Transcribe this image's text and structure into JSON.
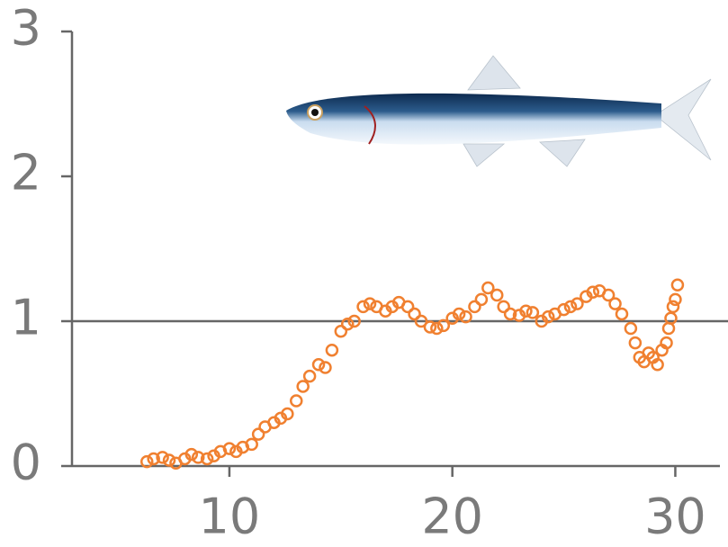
{
  "chart_data": {
    "type": "scatter",
    "x": [
      6.3,
      6.6,
      7.0,
      7.3,
      7.6,
      8.0,
      8.3,
      8.6,
      9.0,
      9.3,
      9.6,
      10.0,
      10.3,
      10.6,
      11.0,
      11.3,
      11.6,
      12.0,
      12.3,
      12.6,
      13.0,
      13.3,
      13.6,
      14.0,
      14.3,
      14.6,
      15.0,
      15.3,
      15.6,
      16.0,
      16.3,
      16.6,
      17.0,
      17.3,
      17.6,
      18.0,
      18.3,
      18.6,
      19.0,
      19.3,
      19.6,
      20.0,
      20.3,
      20.6,
      21.0,
      21.3,
      21.6,
      22.0,
      22.3,
      22.6,
      23.0,
      23.3,
      23.6,
      24.0,
      24.3,
      24.6,
      25.0,
      25.3,
      25.6,
      26.0,
      26.3,
      26.6,
      27.0,
      27.3,
      27.6,
      28.0,
      28.2,
      28.4,
      28.6,
      28.8,
      29.0,
      29.2,
      29.4,
      29.6,
      29.7,
      29.8,
      29.9,
      30.0,
      30.1
    ],
    "values": [
      0.03,
      0.05,
      0.06,
      0.04,
      0.02,
      0.05,
      0.08,
      0.06,
      0.05,
      0.07,
      0.1,
      0.12,
      0.1,
      0.13,
      0.15,
      0.22,
      0.27,
      0.3,
      0.33,
      0.36,
      0.45,
      0.55,
      0.62,
      0.7,
      0.68,
      0.8,
      0.93,
      0.98,
      1.0,
      1.1,
      1.12,
      1.1,
      1.07,
      1.1,
      1.13,
      1.1,
      1.05,
      1.0,
      0.96,
      0.95,
      0.97,
      1.02,
      1.05,
      1.03,
      1.1,
      1.15,
      1.23,
      1.18,
      1.1,
      1.05,
      1.04,
      1.07,
      1.06,
      1.0,
      1.03,
      1.05,
      1.08,
      1.1,
      1.12,
      1.17,
      1.2,
      1.21,
      1.18,
      1.12,
      1.05,
      0.95,
      0.85,
      0.75,
      0.72,
      0.78,
      0.75,
      0.7,
      0.8,
      0.85,
      0.95,
      1.02,
      1.1,
      1.15,
      1.25
    ],
    "color": "#f08030",
    "xlim": [
      2.94,
      32
    ],
    "xticks": [
      10,
      20,
      30
    ],
    "ylim": [
      0,
      3
    ],
    "yticks": [
      0,
      1,
      2,
      3
    ],
    "reference_line": 1
  }
}
